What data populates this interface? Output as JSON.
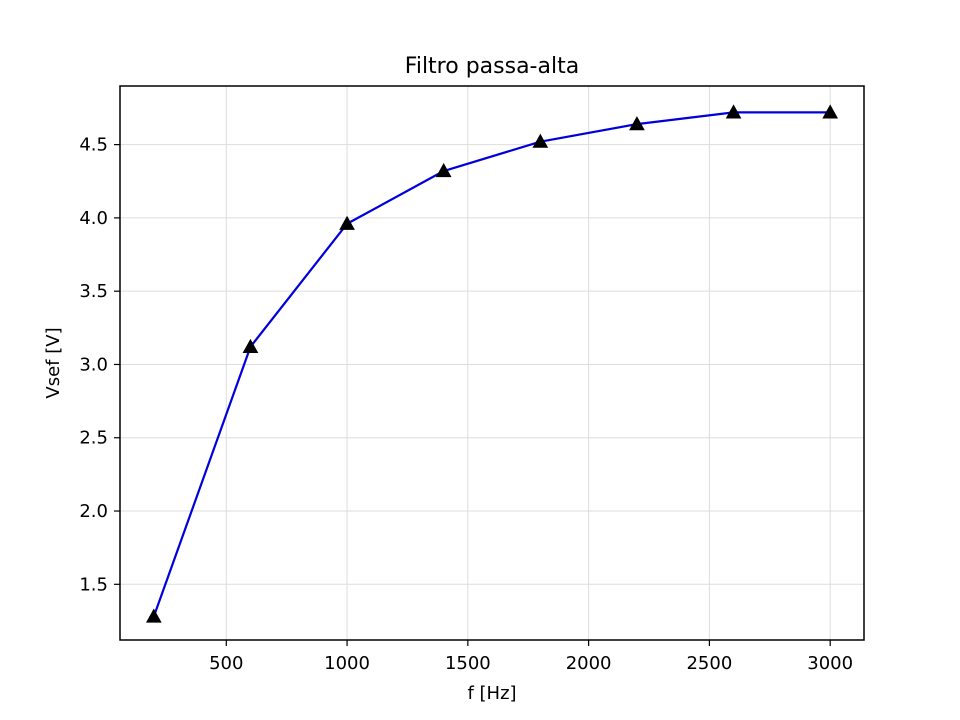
{
  "chart_data": {
    "type": "line",
    "title": "Filtro passa-alta",
    "xlabel": "f [Hz]",
    "ylabel": "Vsef [V]",
    "xlim": [
      60,
      3140
    ],
    "ylim": [
      1.12,
      4.9
    ],
    "xticks": [
      500,
      1000,
      1500,
      2000,
      2500,
      3000
    ],
    "xtick_labels": [
      "500",
      "1000",
      "1500",
      "2000",
      "2500",
      "3000"
    ],
    "yticks": [
      1.5,
      2.0,
      2.5,
      3.0,
      3.5,
      4.0,
      4.5
    ],
    "ytick_labels": [
      "1.5",
      "2.0",
      "2.5",
      "3.0",
      "3.5",
      "4.0",
      "4.5"
    ],
    "grid": true,
    "series": [
      {
        "x": [
          200,
          600,
          1000,
          1400,
          1800,
          2200,
          2600,
          3000
        ],
        "y": [
          1.28,
          3.12,
          3.96,
          4.32,
          4.52,
          4.64,
          4.72,
          4.72
        ],
        "line_color": "#0000dd",
        "marker": "triangle",
        "marker_color": "#000000"
      }
    ]
  }
}
